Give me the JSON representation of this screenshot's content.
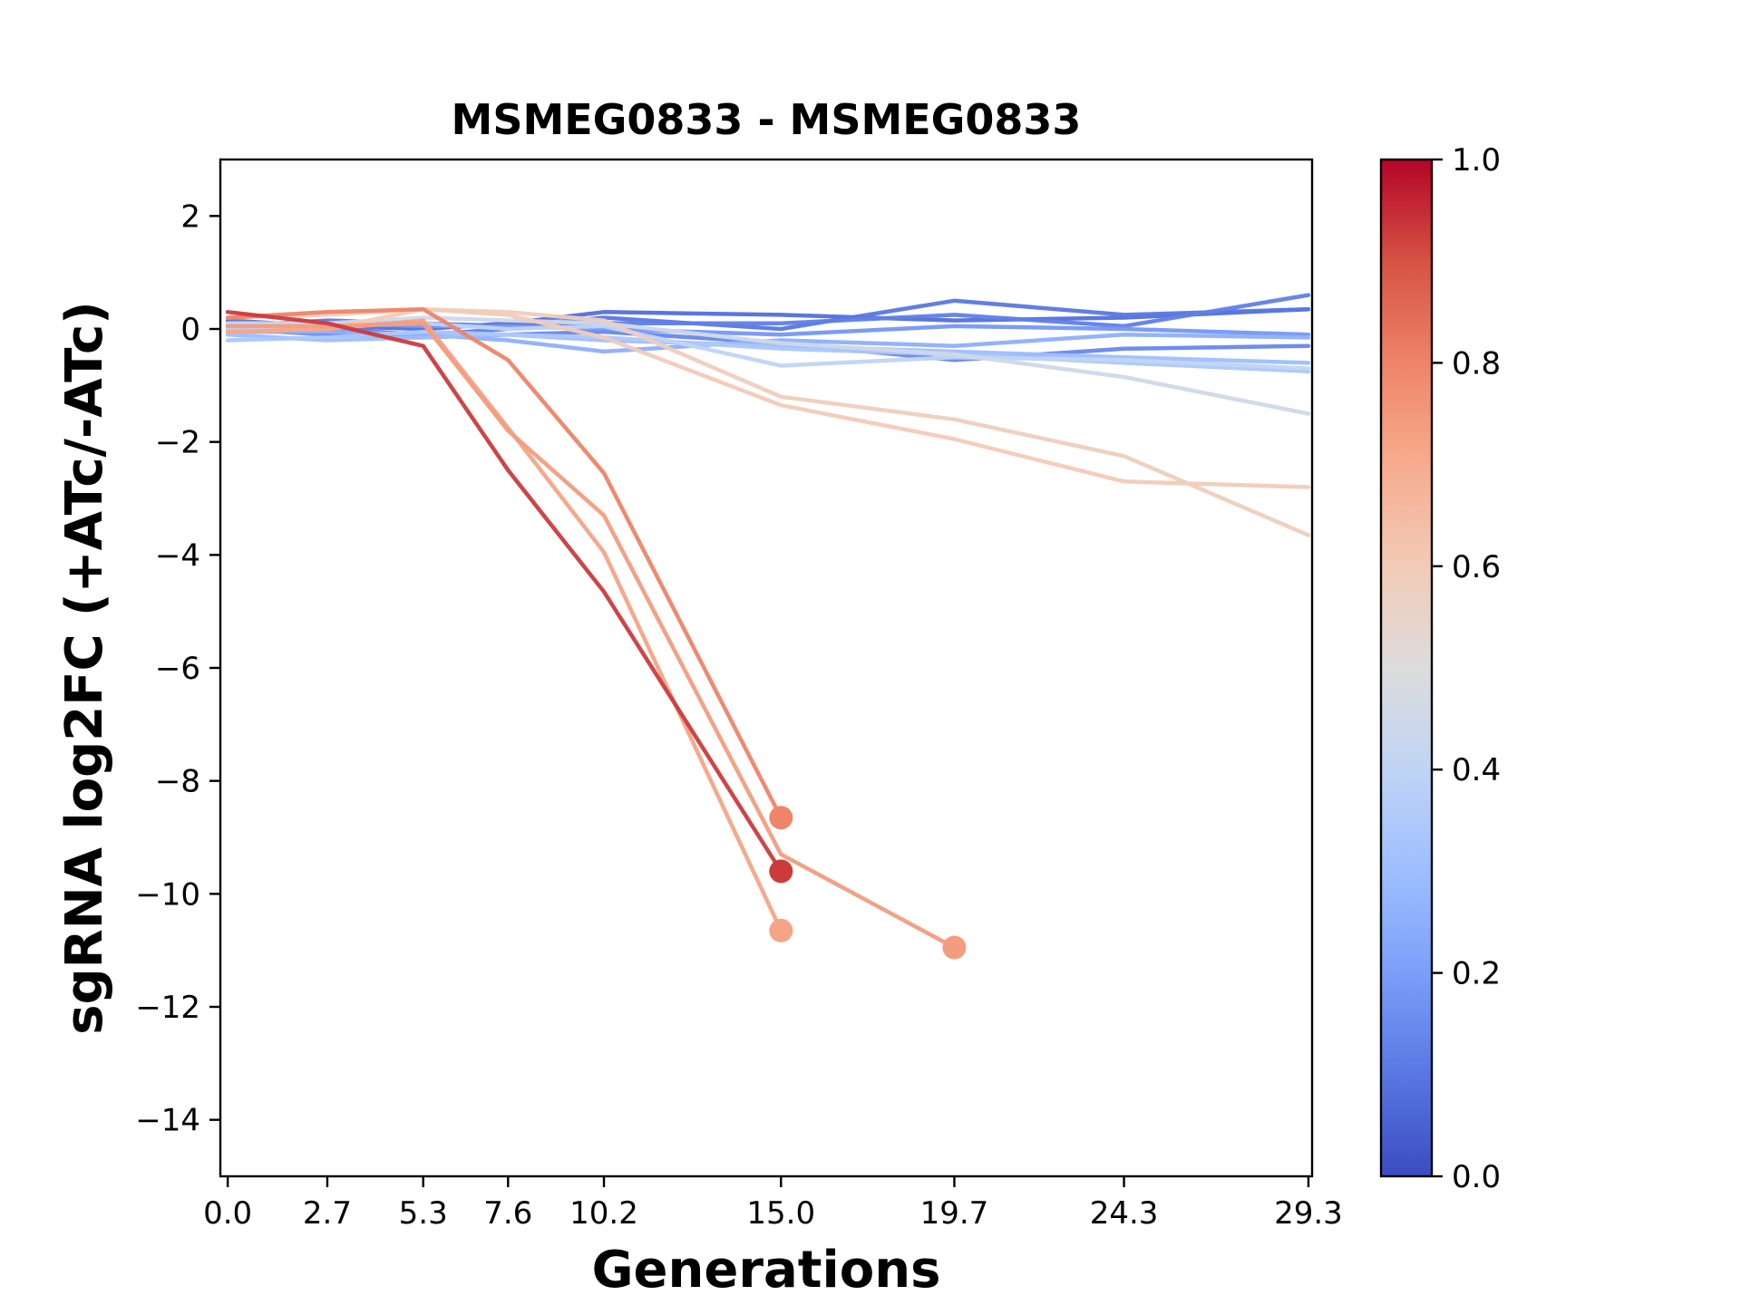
{
  "chart_data": {
    "type": "line",
    "title": "MSMEG0833 - MSMEG0833",
    "xlabel": "Generations",
    "ylabel": "sgRNA log2FC (+ATc/-ATc)",
    "x_ticks": [
      "0.0",
      "2.7",
      "5.3",
      "7.6",
      "10.2",
      "15.0",
      "19.7",
      "24.3",
      "29.3"
    ],
    "x_tick_values": [
      0.0,
      2.7,
      5.3,
      7.6,
      10.2,
      15.0,
      19.7,
      24.3,
      29.3
    ],
    "y_ticks": [
      "2",
      "0",
      "−2",
      "−4",
      "−6",
      "−8",
      "−10",
      "−12",
      "−14"
    ],
    "y_tick_values": [
      2,
      0,
      -2,
      -4,
      -6,
      -8,
      -10,
      -12,
      -14
    ],
    "xlim": [
      -0.2,
      29.4
    ],
    "ylim": [
      -15,
      3
    ],
    "grid": false,
    "legend": "none",
    "colorbar": {
      "colormap": "coolwarm",
      "range": [
        0,
        1
      ],
      "ticks": [
        "0.0",
        "0.2",
        "0.4",
        "0.6",
        "0.8",
        "1.0"
      ],
      "tick_values": [
        0,
        0.2,
        0.4,
        0.6,
        0.8,
        1.0
      ]
    },
    "series": [
      {
        "c": 0.08,
        "x": [
          0,
          2.7,
          5.3,
          7.6,
          10.2,
          15.0,
          19.7,
          24.3,
          29.3
        ],
        "y": [
          0.15,
          0.05,
          0.0,
          0.1,
          0.3,
          0.25,
          0.15,
          0.2,
          0.35
        ]
      },
      {
        "c": 0.1,
        "x": [
          0,
          2.7,
          5.3,
          7.6,
          10.2,
          15.0,
          19.7,
          24.3,
          29.3
        ],
        "y": [
          0.05,
          0.15,
          0.1,
          0.05,
          0.2,
          0.0,
          0.5,
          0.25,
          0.35
        ]
      },
      {
        "c": 0.12,
        "x": [
          0,
          2.7,
          5.3,
          7.6,
          10.2,
          15.0,
          19.7,
          24.3,
          29.3
        ],
        "y": [
          0.1,
          0.0,
          -0.1,
          0.0,
          0.1,
          0.1,
          0.25,
          0.05,
          0.6
        ]
      },
      {
        "c": 0.14,
        "x": [
          0,
          2.7,
          5.3,
          7.6,
          10.2,
          15.0,
          19.7,
          24.3,
          29.3
        ],
        "y": [
          0.0,
          -0.1,
          -0.15,
          -0.1,
          -0.05,
          -0.25,
          -0.55,
          -0.35,
          -0.3
        ]
      },
      {
        "c": 0.18,
        "x": [
          0,
          2.7,
          5.3,
          7.6,
          10.2,
          15.0,
          19.7,
          24.3,
          29.3
        ],
        "y": [
          0.05,
          0.1,
          0.05,
          0.05,
          0.0,
          -0.1,
          0.05,
          0.0,
          -0.1
        ]
      },
      {
        "c": 0.25,
        "x": [
          0,
          2.7,
          5.3,
          7.6,
          10.2,
          15.0,
          19.7,
          24.3,
          29.3
        ],
        "y": [
          -0.05,
          -0.05,
          -0.1,
          -0.2,
          -0.4,
          -0.2,
          -0.3,
          -0.1,
          -0.15
        ]
      },
      {
        "c": 0.3,
        "x": [
          0,
          2.7,
          5.3,
          7.6,
          10.2,
          15.0,
          19.7,
          24.3,
          29.3
        ],
        "y": [
          -0.1,
          -0.2,
          -0.15,
          -0.1,
          -0.2,
          -0.3,
          -0.4,
          -0.5,
          -0.6
        ]
      },
      {
        "c": 0.34,
        "x": [
          0,
          2.7,
          5.3,
          7.6,
          10.2,
          15.0,
          19.7,
          24.3,
          29.3
        ],
        "y": [
          -0.2,
          -0.15,
          -0.05,
          -0.1,
          -0.15,
          -0.35,
          -0.45,
          -0.6,
          -0.75
        ]
      },
      {
        "c": 0.4,
        "x": [
          0,
          2.7,
          5.3,
          7.6,
          10.2,
          15.0,
          19.7,
          24.3,
          29.3
        ],
        "y": [
          0.0,
          0.05,
          0.1,
          0.0,
          0.05,
          -0.65,
          -0.5,
          -0.55,
          -0.7
        ]
      },
      {
        "c": 0.45,
        "x": [
          0,
          2.7,
          5.3,
          7.6,
          10.2,
          15.0,
          19.7,
          24.3,
          29.3
        ],
        "y": [
          0.1,
          0.1,
          0.2,
          0.15,
          0.1,
          -0.25,
          -0.45,
          -0.85,
          -1.5
        ]
      },
      {
        "c": 0.58,
        "x": [
          0,
          2.7,
          5.3,
          7.6,
          10.2,
          15.0,
          19.7,
          24.3,
          29.3
        ],
        "y": [
          0.2,
          0.25,
          0.35,
          0.3,
          0.15,
          -1.2,
          -1.6,
          -2.25,
          -3.65
        ]
      },
      {
        "c": 0.6,
        "x": [
          0,
          2.7,
          5.3,
          7.6,
          10.2,
          15.0,
          19.7,
          24.3,
          29.3
        ],
        "y": [
          -0.05,
          0.0,
          0.35,
          0.25,
          -0.15,
          -1.35,
          -1.95,
          -2.7,
          -2.8
        ]
      },
      {
        "c": 0.72,
        "x": [
          0,
          2.7,
          5.3,
          7.6,
          10.2,
          15.0
        ],
        "y": [
          -0.05,
          0.0,
          0.15,
          -1.75,
          -3.95,
          -10.65
        ],
        "end_marker": true
      },
      {
        "c": 0.74,
        "x": [
          0,
          2.7,
          5.3,
          7.6,
          10.2,
          15.0,
          19.7
        ],
        "y": [
          0.05,
          0.05,
          0.1,
          -1.8,
          -3.3,
          -9.3,
          -10.95
        ],
        "end_marker": true
      },
      {
        "c": 0.8,
        "x": [
          0,
          2.7,
          5.3,
          7.6,
          10.2,
          15.0
        ],
        "y": [
          0.2,
          0.3,
          0.35,
          -0.55,
          -2.55,
          -8.65
        ],
        "end_marker": true
      },
      {
        "c": 0.93,
        "x": [
          0,
          2.7,
          5.3,
          7.6,
          10.2,
          15.0
        ],
        "y": [
          0.3,
          0.1,
          -0.3,
          -2.5,
          -4.65,
          -9.6
        ],
        "end_marker": true
      }
    ]
  }
}
